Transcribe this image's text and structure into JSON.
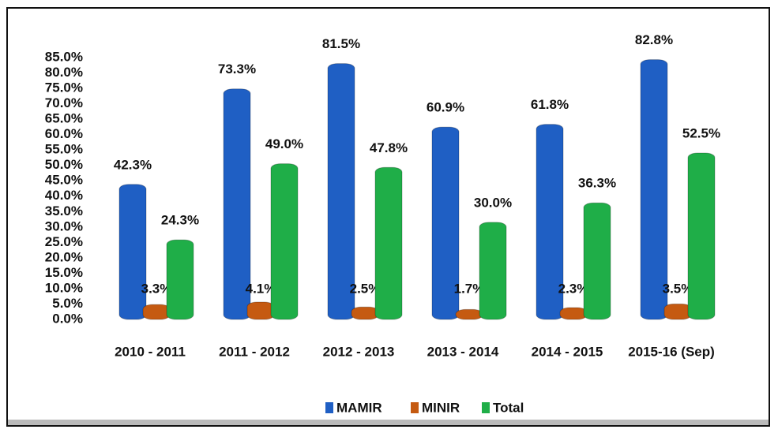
{
  "chart_data": {
    "type": "bar",
    "categories": [
      "2010 - 2011",
      "2011 - 2012",
      "2012 - 2013",
      "2013 - 2014",
      "2014 - 2015",
      "2015-16 (Sep)"
    ],
    "series": [
      {
        "name": "MAMIR",
        "color": "#1f5fc4",
        "values": [
          42.3,
          73.3,
          81.5,
          60.9,
          61.8,
          82.8
        ],
        "value_labels": [
          "42.3%",
          "73.3%",
          "81.5%",
          "60.9%",
          "61.8%",
          "82.8%"
        ]
      },
      {
        "name": "MINIR",
        "color": "#c55a11",
        "values": [
          3.3,
          4.1,
          2.5,
          1.7,
          2.3,
          3.5
        ],
        "value_labels": [
          "3.3%",
          "4.1%",
          "2.5%",
          "1.7%",
          "2.3%",
          "3.5%"
        ]
      },
      {
        "name": "Total",
        "color": "#1fae48",
        "values": [
          24.3,
          49.0,
          47.8,
          30.0,
          36.3,
          52.5
        ],
        "value_labels": [
          "24.3%",
          "49.0%",
          "47.8%",
          "30.0%",
          "36.3%",
          "52.5%"
        ]
      }
    ],
    "ylim": [
      0,
      85
    ],
    "yticks": [
      {
        "value": 0,
        "label": "0.0%"
      },
      {
        "value": 5,
        "label": "5.0%"
      },
      {
        "value": 10,
        "label": "10.0%"
      },
      {
        "value": 15,
        "label": "15.0%"
      },
      {
        "value": 20,
        "label": "20.0%"
      },
      {
        "value": 25,
        "label": "25.0%"
      },
      {
        "value": 30,
        "label": "30.0%"
      },
      {
        "value": 35,
        "label": "35.0%"
      },
      {
        "value": 40,
        "label": "40.0%"
      },
      {
        "value": 45,
        "label": "45.0%"
      },
      {
        "value": 50,
        "label": "50.0%"
      },
      {
        "value": 55,
        "label": "55.0%"
      },
      {
        "value": 60,
        "label": "60.0%"
      },
      {
        "value": 65,
        "label": "65.0%"
      },
      {
        "value": 70,
        "label": "70.0%"
      },
      {
        "value": 75,
        "label": "75.0%"
      },
      {
        "value": 80,
        "label": "80.0%"
      },
      {
        "value": 85,
        "label": "85.0%"
      }
    ],
    "grid": false,
    "legend": "bottom"
  }
}
